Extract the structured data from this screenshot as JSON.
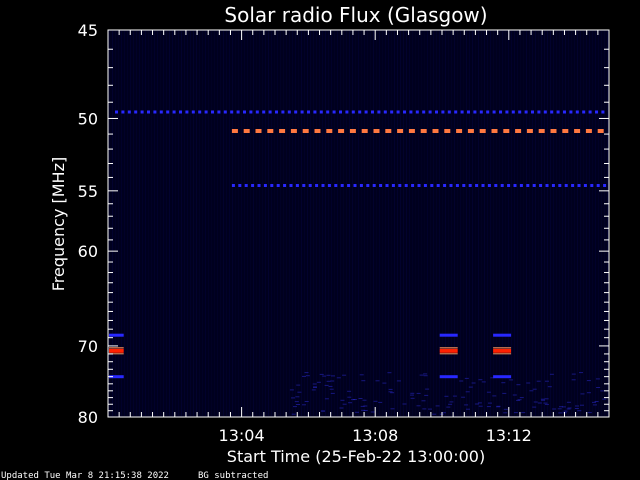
{
  "chart_data": {
    "type": "heatmap",
    "title": "Solar radio Flux (Glasgow)",
    "xlabel": "Start Time (25-Feb-22 13:00:00)",
    "ylabel": "Frequency [MHz]",
    "x_axis": {
      "unit": "minutes after 13:00:00",
      "range": [
        0,
        15
      ],
      "ticks": [
        {
          "value": 4,
          "label": "13:04"
        },
        {
          "value": 8,
          "label": "13:08"
        },
        {
          "value": 12,
          "label": "13:12"
        }
      ]
    },
    "y_axis": {
      "unit": "MHz",
      "scale": "reciprocal",
      "range": [
        45,
        80
      ],
      "inverted": true,
      "ticks": [
        {
          "value": 45,
          "label": "45"
        },
        {
          "value": 50,
          "label": "50"
        },
        {
          "value": 55,
          "label": "55"
        },
        {
          "value": 60,
          "label": "60"
        },
        {
          "value": 70,
          "label": "70"
        },
        {
          "value": 80,
          "label": "80"
        }
      ]
    },
    "grid": false,
    "colors": {
      "background": "#000000",
      "plot_background": "#00001e",
      "axes": "#ffffff",
      "weak_signal": "#2828ff",
      "strong_signal": "#ff7840",
      "peak_signal": "#ff2000"
    },
    "emission_bands": [
      {
        "freq_mhz": 49.6,
        "t_start": 0,
        "t_end": 15,
        "intensity": "weak",
        "dashed": true
      },
      {
        "freq_mhz": 50.8,
        "t_start": 3.5,
        "t_end": 15,
        "intensity": "strong",
        "dashed": true
      },
      {
        "freq_mhz": 54.6,
        "t_start": 3.5,
        "t_end": 15,
        "intensity": "weak",
        "dashed": true
      },
      {
        "freq_mhz": 68.7,
        "t_start": 0,
        "t_end": 0.5,
        "intensity": "weak",
        "dashed": false
      },
      {
        "freq_mhz": 70.6,
        "t_start": 0,
        "t_end": 0.5,
        "intensity": "peak",
        "dashed": false
      },
      {
        "freq_mhz": 74.0,
        "t_start": 0,
        "t_end": 0.5,
        "intensity": "weak",
        "dashed": false
      },
      {
        "freq_mhz": 68.7,
        "t_start": 9.9,
        "t_end": 10.5,
        "intensity": "weak",
        "dashed": false
      },
      {
        "freq_mhz": 70.6,
        "t_start": 9.9,
        "t_end": 10.5,
        "intensity": "peak",
        "dashed": false
      },
      {
        "freq_mhz": 74.0,
        "t_start": 9.9,
        "t_end": 10.5,
        "intensity": "weak",
        "dashed": false
      },
      {
        "freq_mhz": 68.7,
        "t_start": 11.5,
        "t_end": 12.1,
        "intensity": "weak",
        "dashed": false
      },
      {
        "freq_mhz": 70.6,
        "t_start": 11.5,
        "t_end": 12.1,
        "intensity": "peak",
        "dashed": false
      },
      {
        "freq_mhz": 74.0,
        "t_start": 11.5,
        "t_end": 12.1,
        "intensity": "weak",
        "dashed": false
      }
    ]
  },
  "footer": {
    "updated": "Updated Tue Mar  8 21:15:38 2022",
    "note": "BG subtracted"
  }
}
